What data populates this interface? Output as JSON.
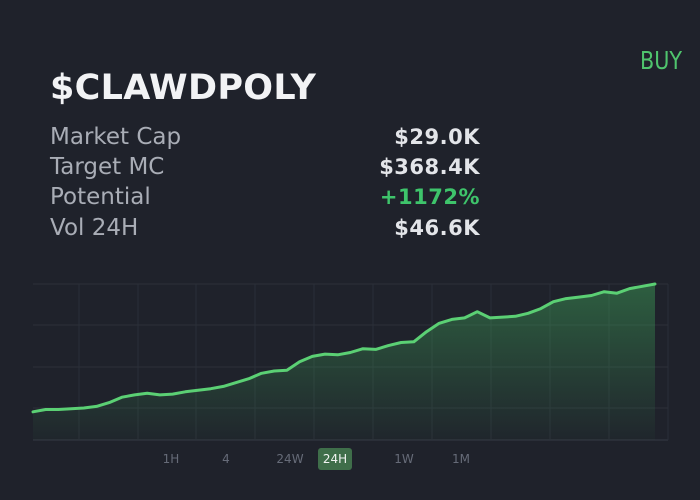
{
  "header": {
    "ticker": "$CLAWDPOLY",
    "buy_label": "BUY"
  },
  "stats": [
    {
      "label": "Market Cap",
      "value": "$29.0K"
    },
    {
      "label": "Target MC",
      "value": "$368.4K"
    },
    {
      "label": "Potential",
      "value": "+1172%"
    },
    {
      "label": "Vol 24H",
      "value": "$46.6K"
    }
  ],
  "ranges": [
    {
      "label": "1H",
      "active": false
    },
    {
      "label": "4",
      "active": false
    },
    {
      "label": "24W",
      "active": false
    },
    {
      "label": "24H",
      "active": true
    },
    {
      "label": "1W",
      "active": false
    },
    {
      "label": "1M",
      "active": false
    }
  ],
  "colors": {
    "background": "#1f222b",
    "accent_green": "#4fc46d",
    "positive": "#3ec46b",
    "active_range_bg": "#3f6e4a"
  },
  "chart_data": {
    "type": "area",
    "title": "",
    "xlabel": "",
    "ylabel": "",
    "grid": true,
    "ylim": [
      0,
      1
    ],
    "values": [
      0.17,
      0.185,
      0.185,
      0.19,
      0.195,
      0.205,
      0.23,
      0.265,
      0.28,
      0.29,
      0.28,
      0.285,
      0.3,
      0.31,
      0.32,
      0.335,
      0.36,
      0.385,
      0.42,
      0.435,
      0.44,
      0.495,
      0.53,
      0.545,
      0.54,
      0.555,
      0.58,
      0.575,
      0.6,
      0.62,
      0.625,
      0.69,
      0.745,
      0.77,
      0.78,
      0.82,
      0.78,
      0.785,
      0.79,
      0.81,
      0.84,
      0.885,
      0.905,
      0.915,
      0.925,
      0.95,
      0.94,
      0.97,
      0.985,
      1.0
    ]
  }
}
